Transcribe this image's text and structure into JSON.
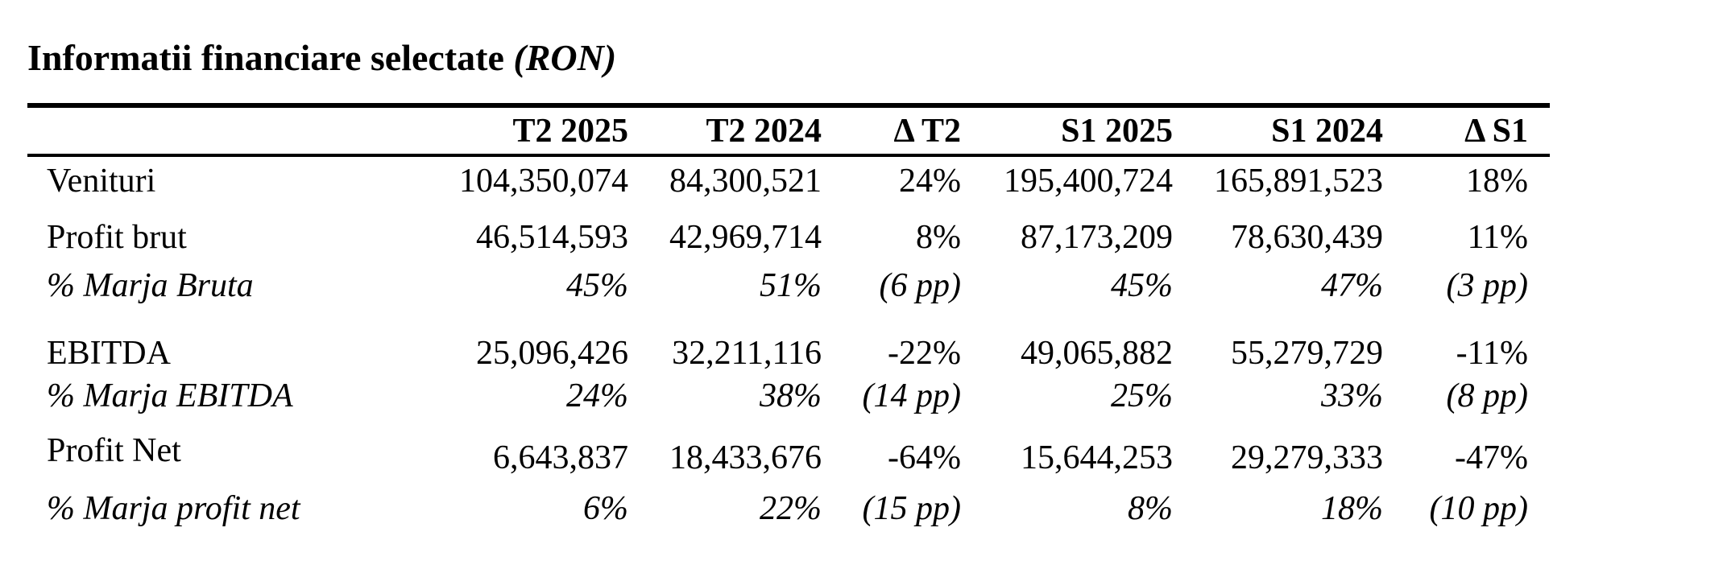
{
  "title": {
    "text": "Informatii financiare selectate",
    "unit": "(RON)"
  },
  "headers": [
    "T2  2025",
    "T2  2024",
    "Δ T2",
    "S1 2025",
    "S1 2024",
    "Δ S1"
  ],
  "rows": [
    {
      "label": "Venituri",
      "italic": false,
      "values": [
        "104,350,074",
        "84,300,521",
        "24%",
        "195,400,724",
        "165,891,523",
        "18%"
      ]
    },
    {
      "label": "Profit brut",
      "italic": false,
      "values": [
        "46,514,593",
        "42,969,714",
        "8%",
        "87,173,209",
        "78,630,439",
        "11%"
      ]
    },
    {
      "label": "% Marja Bruta",
      "italic": true,
      "values": [
        "45%",
        "51%",
        "(6 pp)",
        "45%",
        "47%",
        "(3 pp)"
      ]
    },
    {
      "label": "EBITDA",
      "italic": false,
      "values": [
        "25,096,426",
        "32,211,116",
        "-22%",
        "49,065,882",
        "55,279,729",
        "-11%"
      ]
    },
    {
      "label": "% Marja EBITDA",
      "italic": true,
      "values": [
        "24%",
        "38%",
        "(14 pp)",
        "25%",
        "33%",
        "(8 pp)"
      ]
    },
    {
      "label": "Profit Net",
      "italic": false,
      "values": [
        "6,643,837",
        "18,433,676",
        "-64%",
        "15,644,253",
        "29,279,333",
        "-47%"
      ]
    },
    {
      "label": "% Marja profit net",
      "italic": true,
      "values": [
        "6%",
        "22%",
        "(15 pp)",
        "8%",
        "18%",
        "(10 pp)"
      ]
    }
  ]
}
